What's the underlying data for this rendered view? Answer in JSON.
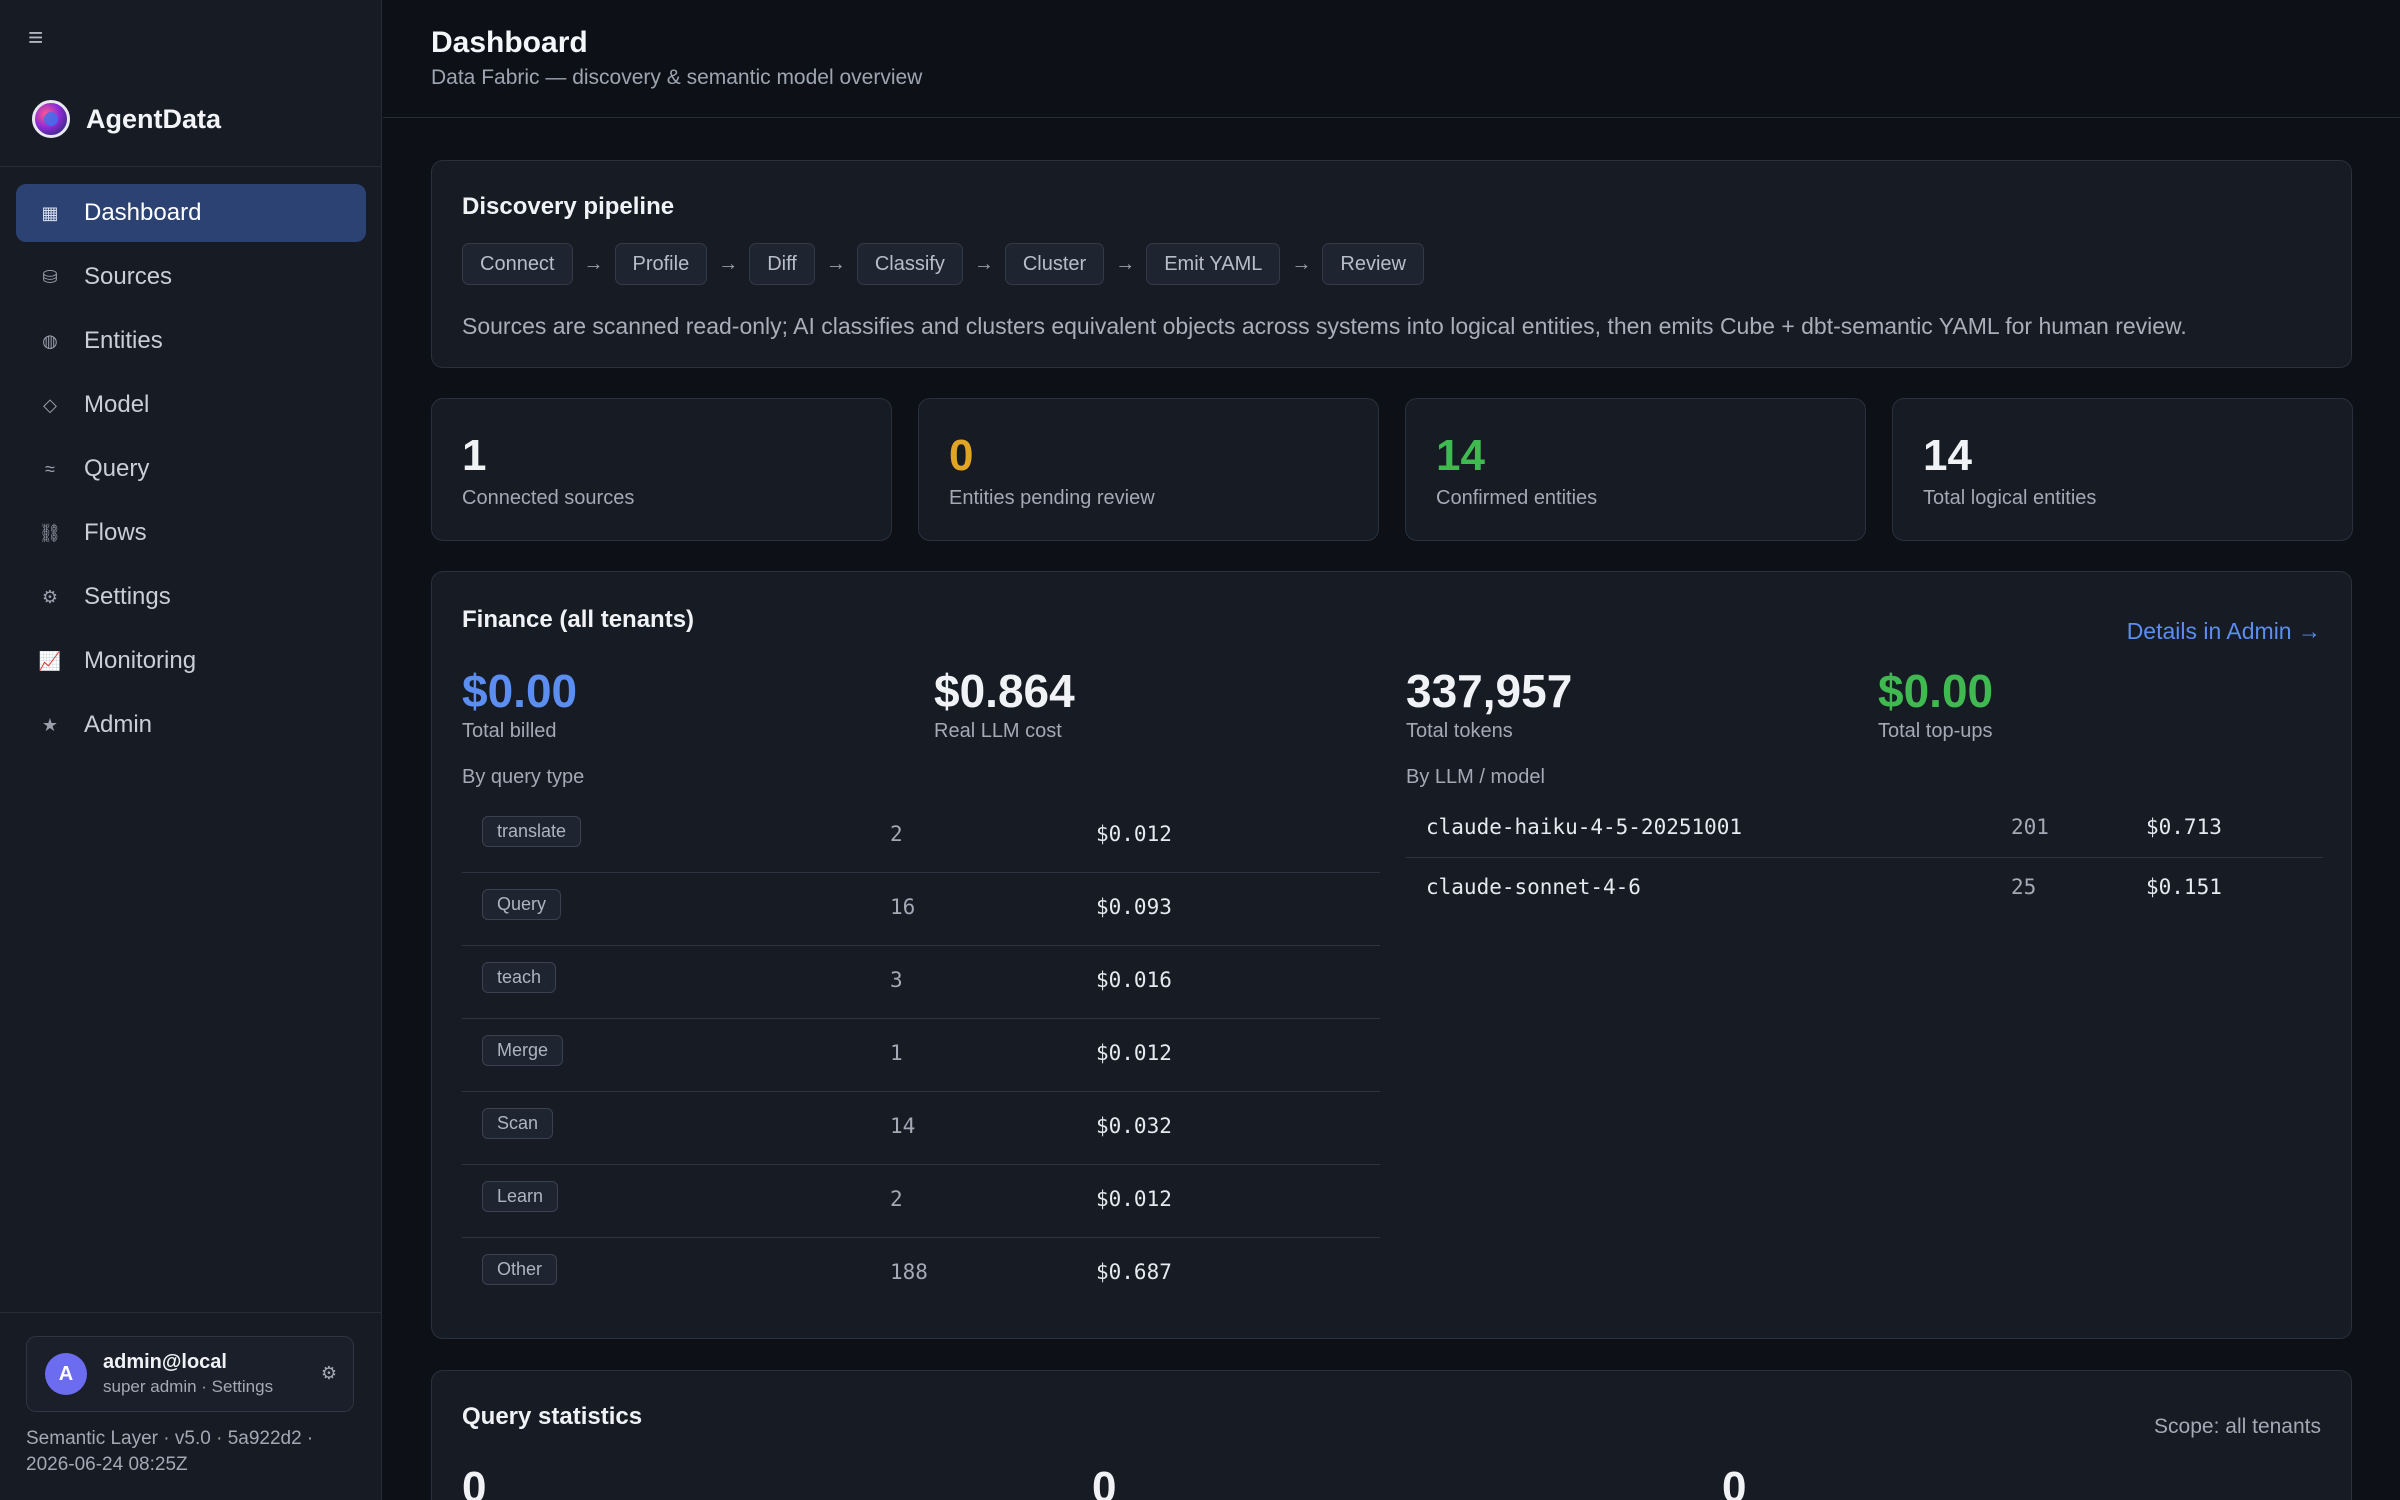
{
  "app": {
    "name": "AgentData"
  },
  "sidebar": {
    "items": [
      {
        "label": "Dashboard",
        "icon": "dashboard-icon",
        "glyph": "▦",
        "active": true
      },
      {
        "label": "Sources",
        "icon": "database-icon",
        "glyph": "⛁",
        "active": false
      },
      {
        "label": "Entities",
        "icon": "entities-icon",
        "glyph": "◍",
        "active": false
      },
      {
        "label": "Model",
        "icon": "diamond-icon",
        "glyph": "◇",
        "active": false
      },
      {
        "label": "Query",
        "icon": "query-icon",
        "glyph": "≈",
        "active": false
      },
      {
        "label": "Flows",
        "icon": "flows-icon",
        "glyph": "⛓",
        "active": false
      },
      {
        "label": "Settings",
        "icon": "gear-icon",
        "glyph": "⚙",
        "active": false
      },
      {
        "label": "Monitoring",
        "icon": "chart-icon",
        "glyph": "📈",
        "active": false
      },
      {
        "label": "Admin",
        "icon": "star-icon",
        "glyph": "★",
        "active": false
      }
    ],
    "user": {
      "initial": "A",
      "name": "admin@local",
      "role": "super admin · Settings"
    },
    "version_line1": "Semantic Layer · v5.0 · 5a922d2 ·",
    "version_line2": "2026-06-24 08:25Z"
  },
  "header": {
    "title": "Dashboard",
    "subtitle": "Data Fabric — discovery & semantic model overview"
  },
  "pipeline": {
    "title": "Discovery pipeline",
    "steps": [
      "Connect",
      "Profile",
      "Diff",
      "Classify",
      "Cluster",
      "Emit YAML",
      "Review"
    ],
    "arrow": "→",
    "description": "Sources are scanned read-only; AI classifies and clusters equivalent objects across systems into logical entities, then emits Cube + dbt-semantic YAML for human review."
  },
  "stats": [
    {
      "value": "1",
      "label": "Connected sources",
      "color": "#f0f2f6"
    },
    {
      "value": "0",
      "label": "Entities pending review",
      "color": "#e0a526"
    },
    {
      "value": "14",
      "label": "Confirmed entities",
      "color": "#3fb950"
    },
    {
      "value": "14",
      "label": "Total logical entities",
      "color": "#f0f2f6"
    }
  ],
  "finance": {
    "title": "Finance (all tenants)",
    "link": "Details in Admin →",
    "metrics": [
      {
        "value": "$0.00",
        "label": "Total billed",
        "color": "#5b8ef0"
      },
      {
        "value": "$0.864",
        "label": "Real LLM cost",
        "color": "#f0f2f6"
      },
      {
        "value": "337,957",
        "label": "Total tokens",
        "color": "#f0f2f6"
      },
      {
        "value": "$0.00",
        "label": "Total top-ups",
        "color": "#3fb950"
      }
    ],
    "by_query_label": "By query type",
    "by_query": [
      {
        "type": "translate",
        "count": "2",
        "cost": "$0.012"
      },
      {
        "type": "Query",
        "count": "16",
        "cost": "$0.093"
      },
      {
        "type": "teach",
        "count": "3",
        "cost": "$0.016"
      },
      {
        "type": "Merge",
        "count": "1",
        "cost": "$0.012"
      },
      {
        "type": "Scan",
        "count": "14",
        "cost": "$0.032"
      },
      {
        "type": "Learn",
        "count": "2",
        "cost": "$0.012"
      },
      {
        "type": "Other",
        "count": "188",
        "cost": "$0.687"
      }
    ],
    "by_model_label": "By LLM / model",
    "by_model": [
      {
        "model": "claude-haiku-4-5-20251001",
        "count": "201",
        "cost": "$0.713"
      },
      {
        "model": "claude-sonnet-4-6",
        "count": "25",
        "cost": "$0.151"
      }
    ]
  },
  "query_stats": {
    "title": "Query statistics",
    "scope": "Scope: all tenants",
    "values": [
      "0",
      "0",
      "0"
    ]
  }
}
